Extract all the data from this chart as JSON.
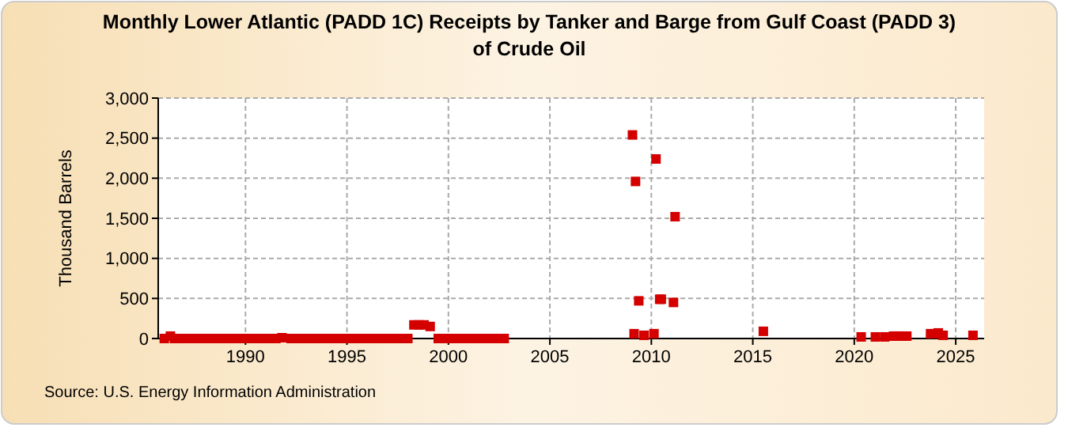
{
  "chart_data": {
    "type": "scatter",
    "title": "Monthly Lower Atlantic (PADD 1C) Receipts by Tanker and Barge from Gulf Coast (PADD 3) of Crude Oil",
    "ylabel": "Thousand Barrels",
    "annotations": [
      "Source: U.S. Energy Information Administration"
    ],
    "xlim": [
      1985.7,
      2026.4
    ],
    "xticks": [
      1990,
      1995,
      2000,
      2005,
      2010,
      2015,
      2020,
      2025
    ],
    "ylim": [
      0,
      3000
    ],
    "yticks": [
      {
        "value": 0,
        "label": "0"
      },
      {
        "value": 500,
        "label": "500"
      },
      {
        "value": 1000,
        "label": "1,000"
      },
      {
        "value": 1500,
        "label": "1,500"
      },
      {
        "value": 2000,
        "label": "2,000"
      },
      {
        "value": 2500,
        "label": "2,500"
      },
      {
        "value": 3000,
        "label": "3,000"
      }
    ],
    "grid": true,
    "marker": "square",
    "series": [
      {
        "color": "#d40000",
        "x": [
          1986,
          1986.3,
          1986.5,
          1986.75,
          1987,
          1987.25,
          1987.5,
          1987.75,
          1988,
          1988.25,
          1988.5,
          1988.75,
          1989,
          1989.25,
          1989.5,
          1989.75,
          1990,
          1990.25,
          1990.5,
          1990.75,
          1991,
          1991.25,
          1991.5,
          1991.8,
          1992.25,
          1992.5,
          1992.75,
          1993,
          1993.25,
          1993.5,
          1993.75,
          1994,
          1994.25,
          1994.5,
          1994.75,
          1995,
          1995.25,
          1995.5,
          1995.75,
          1996,
          1996.25,
          1996.5,
          1996.75,
          1997,
          1997.25,
          1997.5,
          1997.75,
          1998,
          1998.3,
          1998.55,
          1998.8,
          1999.1,
          1999.5,
          1999.75,
          2000,
          2000.25,
          2000.5,
          2000.75,
          2001,
          2001.25,
          2001.5,
          2001.75,
          2002,
          2002.25,
          2002.5,
          2002.75,
          2009.07,
          2009.15,
          2009.22,
          2009.38,
          2009.64,
          2010.13,
          2010.23,
          2010.41,
          2010.49,
          2011.09,
          2011.17,
          2015.52,
          2020.34,
          2021.04,
          2021.5,
          2021.94,
          2022.15,
          2022.36,
          2022.59,
          2023.76,
          2023.96,
          2024.14,
          2024.38,
          2025.85
        ],
        "values": [
          0,
          30,
          0,
          0,
          0,
          0,
          0,
          0,
          0,
          0,
          0,
          0,
          0,
          0,
          0,
          0,
          0,
          0,
          0,
          0,
          0,
          0,
          0,
          10,
          0,
          0,
          0,
          0,
          0,
          0,
          0,
          0,
          0,
          0,
          0,
          0,
          0,
          0,
          0,
          0,
          0,
          0,
          0,
          0,
          0,
          0,
          0,
          0,
          170,
          170,
          170,
          150,
          0,
          0,
          0,
          0,
          0,
          0,
          0,
          0,
          0,
          0,
          0,
          0,
          0,
          0,
          2540,
          60,
          1960,
          470,
          40,
          60,
          2240,
          490,
          490,
          450,
          1520,
          90,
          20,
          20,
          20,
          30,
          30,
          30,
          30,
          60,
          60,
          70,
          40,
          40
        ]
      }
    ]
  }
}
